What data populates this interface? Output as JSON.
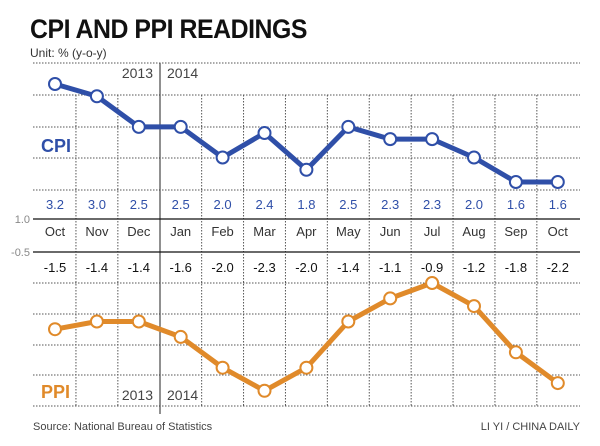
{
  "title": "CPI AND PPI READINGS",
  "unit": "Unit: % (y-o-y)",
  "source": "Source: National Bureau of Statistics",
  "credit": "LI YI / CHINA DAILY",
  "colors": {
    "cpi": "#2f4fa8",
    "ppi": "#e08a2a"
  },
  "chart_data": [
    {
      "type": "line",
      "title": "CPI",
      "year_labels": [
        "2013",
        "2014"
      ],
      "categories": [
        "Oct",
        "Nov",
        "Dec",
        "Jan",
        "Feb",
        "Mar",
        "Apr",
        "May",
        "Jun",
        "Jul",
        "Aug",
        "Sep",
        "Oct"
      ],
      "values": [
        3.2,
        3.0,
        2.5,
        2.5,
        2.0,
        2.4,
        1.8,
        2.5,
        2.3,
        2.3,
        2.0,
        1.6,
        1.6
      ],
      "axis_label": "1.0"
    },
    {
      "type": "line",
      "title": "PPI",
      "year_labels": [
        "2013",
        "2014"
      ],
      "categories": [
        "Oct",
        "Nov",
        "Dec",
        "Jan",
        "Feb",
        "Mar",
        "Apr",
        "May",
        "Jun",
        "Jul",
        "Aug",
        "Sep",
        "Oct"
      ],
      "values": [
        -1.5,
        -1.4,
        -1.4,
        -1.6,
        -2.0,
        -2.3,
        -2.0,
        -1.4,
        -1.1,
        -0.9,
        -1.2,
        -1.8,
        -2.2
      ],
      "axis_label": "-0.5"
    }
  ]
}
